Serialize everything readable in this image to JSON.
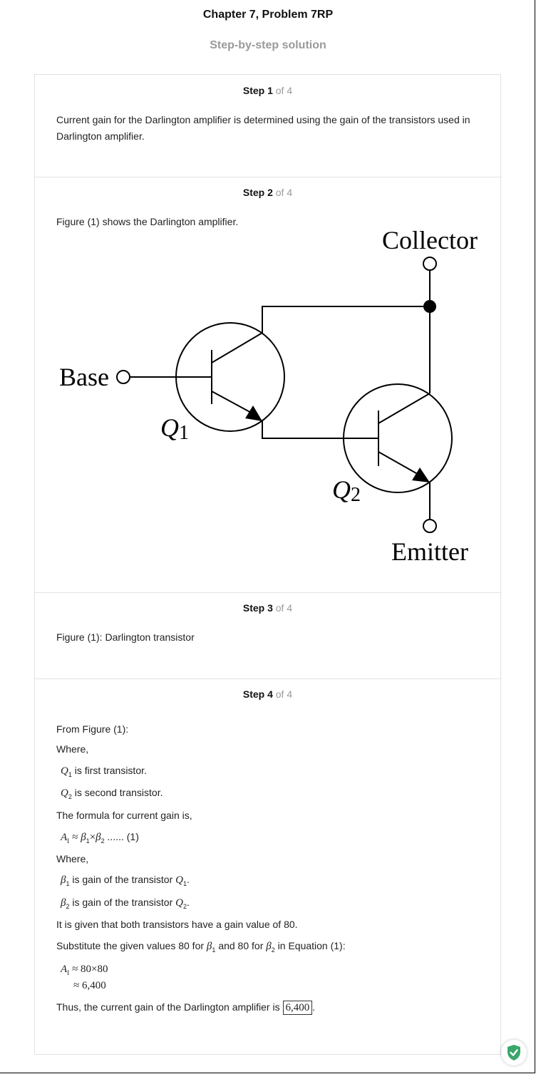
{
  "header": {
    "title": "Chapter 7, Problem 7RP",
    "subtitle": "Step-by-step solution"
  },
  "steps": [
    {
      "label": "Step 1",
      "of": "of 4"
    },
    {
      "label": "Step 2",
      "of": "of 4"
    },
    {
      "label": "Step 3",
      "of": "of 4"
    },
    {
      "label": "Step 4",
      "of": "of 4"
    }
  ],
  "step1": {
    "text": "Current gain for the Darlington amplifier is determined using the gain of the transistors used in Darlington amplifier."
  },
  "step2": {
    "text": "Figure (1) shows the Darlington amplifier.",
    "figure": {
      "collector_label": "Collector",
      "base_label": "Base",
      "emitter_label": "Emitter",
      "q1_label": "Q",
      "q1_sub": "1",
      "q2_label": "Q",
      "q2_sub": "2"
    }
  },
  "step3": {
    "text": "Figure (1): Darlington transistor"
  },
  "step4": {
    "from_figure": "From Figure (1):",
    "where1": "Where,",
    "q1_desc": "is first transistor.",
    "q2_desc": "is second transistor.",
    "formula_intro": "The formula for current gain is,",
    "eq_tag": "...... (1)",
    "where2": "Where,",
    "beta1_desc": "is gain of the transistor",
    "beta2_desc": "is gain of the transistor",
    "given": "It is given that both transistors have a gain value of 80.",
    "sub_part1": "Substitute the given values 80 for",
    "sub_part2": "and 80 for",
    "sub_part3": "in Equation (1):",
    "calc_line1": "≈ 80×80",
    "calc_line2": "≈ 6,400",
    "conclusion": "Thus, the current gain of the Darlington amplifier is",
    "answer": "6,400"
  },
  "math": {
    "Q": "Q",
    "beta": "β",
    "A": "A",
    "I": "I",
    "s1": "1",
    "s2": "2",
    "approx": "≈",
    "times": "×",
    "dot": ".",
    "period": "."
  },
  "colors": {
    "muted": "#9a9a9a",
    "border": "#e2e2e2",
    "shield_green": "#3aa66b"
  },
  "icons": {
    "badge": "shield-check-icon"
  }
}
